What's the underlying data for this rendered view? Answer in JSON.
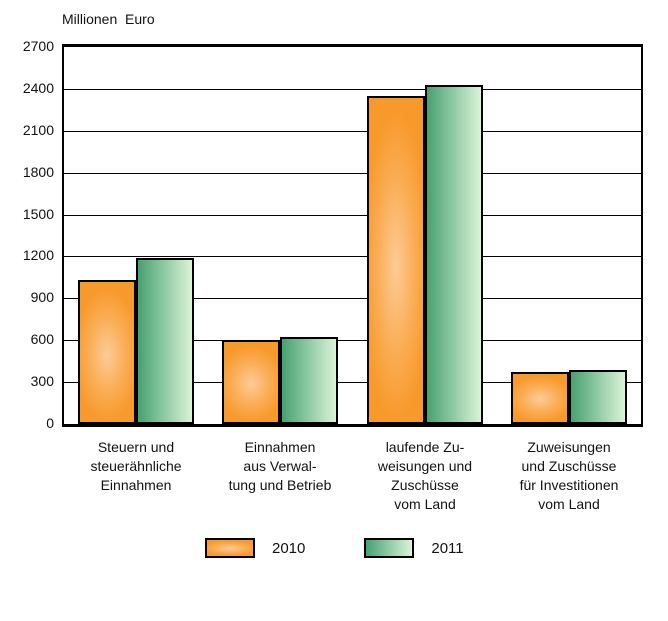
{
  "chart_data": {
    "type": "bar",
    "title": "Millionen  Euro",
    "ylabel": "Millionen Euro",
    "xlabel": "",
    "categories": [
      "Steuern und steuerähnliche Einnahmen",
      "Einnahmen aus Verwaltung und Betrieb",
      "laufende Zuweisungen und Zuschüsse vom Land",
      "Zuweisungen und Zuschüsse für Investitionen vom Land"
    ],
    "category_label_lines": [
      [
        "Steuern und",
        "steuerähnliche",
        "Einnahmen"
      ],
      [
        "Einnahmen",
        "aus Verwal-",
        "tung und Betrieb"
      ],
      [
        "laufende Zu-",
        "weisungen und",
        "Zuschüsse",
        "vom Land"
      ],
      [
        "Zuweisungen",
        "und Zuschüsse",
        "für Investitionen",
        "vom Land"
      ]
    ],
    "series": [
      {
        "name": "2010",
        "values": [
          1030,
          605,
          2350,
          375
        ]
      },
      {
        "name": "2011",
        "values": [
          1190,
          620,
          2425,
          385
        ]
      }
    ],
    "ylim": [
      0,
      2700
    ],
    "yticks": [
      0,
      300,
      600,
      900,
      1200,
      1500,
      1800,
      2100,
      2400,
      2700
    ],
    "grid": true,
    "legend_position": "bottom"
  },
  "colors": {
    "series_2010_center": "#FDCB97",
    "series_2010_mid": "#FAAC52",
    "series_2010_edge": "#F8992B",
    "series_2011_dark": "#47A173",
    "series_2011_light": "#DAF4D7",
    "axis": "#000000",
    "text": "#111111",
    "background": "#FFFFFF"
  },
  "legend": {
    "items": [
      "2010",
      "2011"
    ]
  }
}
